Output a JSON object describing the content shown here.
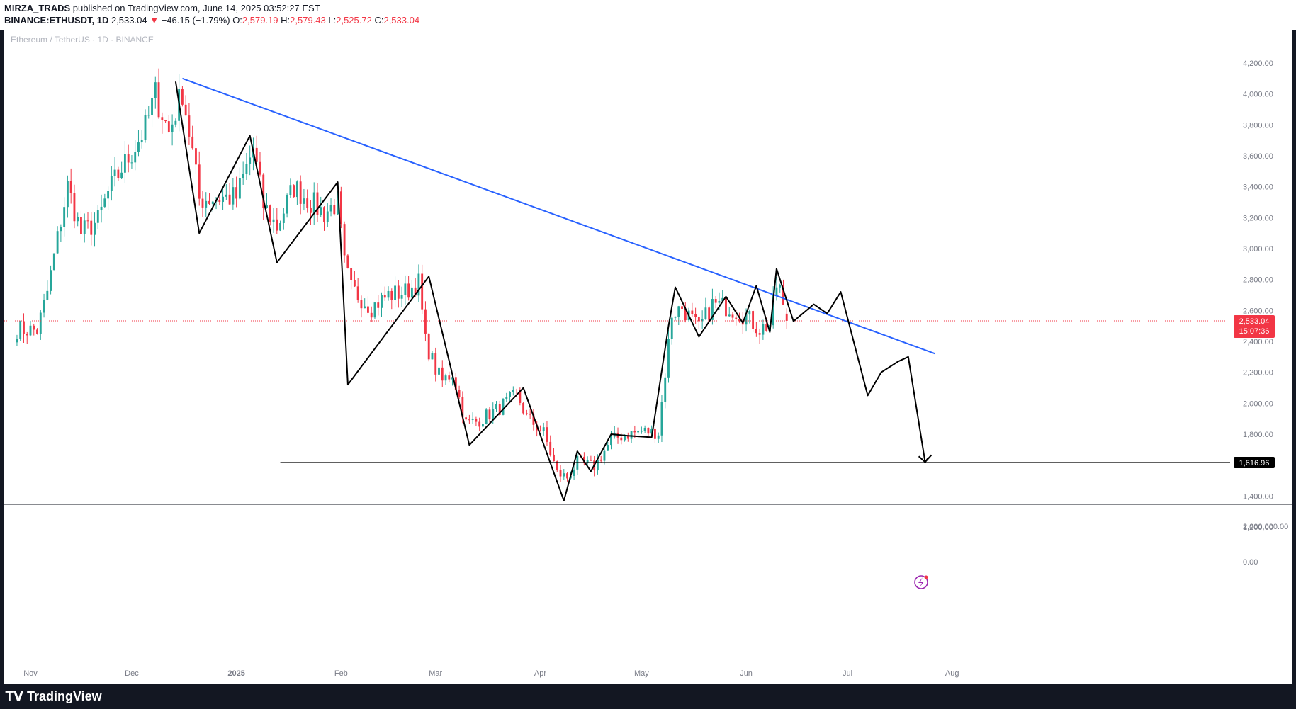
{
  "header": {
    "author": "MIRZA_TRADS",
    "published": "published on TradingView.com, June 14, 2025 03:52:27 EST",
    "symbol": "BINANCE:ETHUSDT, 1D",
    "last": "2,533.04",
    "arrow": "▼",
    "change": "−46.15 (−1.79%)",
    "o_label": "O:",
    "o_value": "2,579.19",
    "h_label": "H:",
    "h_value": "2,579.43",
    "l_label": "L:",
    "l_value": "2,525.72",
    "c_label": "C:",
    "c_value": "2,533.04"
  },
  "chart_title": "Ethereum / TetherUS · 1D · BINANCE",
  "footer": {
    "brand": "TradingView",
    "brand_icon": "tradingview-logo-icon"
  },
  "colors": {
    "up": "#26a69a",
    "down": "#f23645",
    "trendline": "#2962ff",
    "path": "#000000",
    "price_line": "#f23645",
    "lightning": "#9c27b0"
  },
  "chart_data": {
    "type": "candlestick",
    "title": "Ethereum / TetherUS · 1D · BINANCE",
    "y_ticks": [
      "4,200.00",
      "4,000.00",
      "3,800.00",
      "3,600.00",
      "3,400.00",
      "3,200.00",
      "3,000.00",
      "2,800.00",
      "2,600.00",
      "2,400.00",
      "2,200.00",
      "2,000.00",
      "1,800.00",
      "1,400.00",
      "1,200.00"
    ],
    "y_tick_values": [
      4200,
      4000,
      3800,
      3600,
      3400,
      3200,
      3000,
      2800,
      2600,
      2400,
      2200,
      2000,
      1800,
      1400,
      1200
    ],
    "ylim": [
      1150,
      4250
    ],
    "volume_ticks": [
      "2,000,000.00",
      "0.00"
    ],
    "x_ticks": [
      "Nov",
      "Dec",
      "2025",
      "Feb",
      "Mar",
      "Apr",
      "May",
      "Jun",
      "Jul",
      "Aug"
    ],
    "x_tick_dates": [
      "2024-11-01",
      "2024-12-01",
      "2025-01-01",
      "2025-02-01",
      "2025-03-01",
      "2025-04-01",
      "2025-05-01",
      "2025-06-01",
      "2025-07-01",
      "2025-08-01"
    ],
    "current_price": {
      "value": 2533.04,
      "label": "2,533.04",
      "countdown": "15:07:36"
    },
    "support_level": {
      "value": 1616.96,
      "label": "1,616.96",
      "from_date": "2025-01-14"
    },
    "trendline": [
      {
        "date": "2024-12-16",
        "value": 4100
      },
      {
        "date": "2025-07-27",
        "value": 2320
      }
    ],
    "pattern_path": [
      {
        "date": "2024-12-14",
        "value": 4080
      },
      {
        "date": "2024-12-21",
        "value": 3100
      },
      {
        "date": "2025-01-05",
        "value": 3730
      },
      {
        "date": "2025-01-13",
        "value": 2910
      },
      {
        "date": "2025-01-31",
        "value": 3430
      },
      {
        "date": "2025-02-03",
        "value": 2120
      },
      {
        "date": "2025-02-27",
        "value": 2820
      },
      {
        "date": "2025-03-11",
        "value": 1730
      },
      {
        "date": "2025-03-27",
        "value": 2100
      },
      {
        "date": "2025-04-08",
        "value": 1370
      },
      {
        "date": "2025-04-12",
        "value": 1690
      },
      {
        "date": "2025-04-16",
        "value": 1560
      },
      {
        "date": "2025-04-22",
        "value": 1800
      },
      {
        "date": "2025-04-27",
        "value": 1790
      },
      {
        "date": "2025-05-04",
        "value": 1780
      },
      {
        "date": "2025-05-09",
        "value": 2500
      },
      {
        "date": "2025-05-11",
        "value": 2750
      },
      {
        "date": "2025-05-18",
        "value": 2430
      },
      {
        "date": "2025-05-26",
        "value": 2690
      },
      {
        "date": "2025-05-31",
        "value": 2520
      },
      {
        "date": "2025-06-04",
        "value": 2760
      },
      {
        "date": "2025-06-08",
        "value": 2460
      },
      {
        "date": "2025-06-10",
        "value": 2870
      },
      {
        "date": "2025-06-15",
        "value": 2530
      },
      {
        "date": "2025-06-21",
        "value": 2640
      },
      {
        "date": "2025-06-25",
        "value": 2580
      },
      {
        "date": "2025-06-29",
        "value": 2720
      },
      {
        "date": "2025-07-07",
        "value": 2050
      },
      {
        "date": "2025-07-11",
        "value": 2200
      },
      {
        "date": "2025-07-16",
        "value": 2270
      },
      {
        "date": "2025-07-19",
        "value": 2300
      },
      {
        "date": "2025-07-24",
        "value": 1620
      },
      {
        "date": "2025-07-25",
        "value": 1650
      }
    ],
    "anchors": [
      {
        "date": "2024-10-28",
        "value": 2480
      },
      {
        "date": "2024-11-03",
        "value": 2470
      },
      {
        "date": "2024-11-06",
        "value": 2720
      },
      {
        "date": "2024-11-10",
        "value": 3180
      },
      {
        "date": "2024-11-12",
        "value": 3400
      },
      {
        "date": "2024-11-16",
        "value": 3100
      },
      {
        "date": "2024-11-21",
        "value": 3180
      },
      {
        "date": "2024-11-24",
        "value": 3360
      },
      {
        "date": "2024-11-28",
        "value": 3520
      },
      {
        "date": "2024-12-01",
        "value": 3620
      },
      {
        "date": "2024-12-05",
        "value": 3780
      },
      {
        "date": "2024-12-08",
        "value": 4000
      },
      {
        "date": "2024-12-12",
        "value": 3750
      },
      {
        "date": "2024-12-16",
        "value": 4020
      },
      {
        "date": "2024-12-19",
        "value": 3620
      },
      {
        "date": "2024-12-21",
        "value": 3320
      },
      {
        "date": "2024-12-27",
        "value": 3330
      },
      {
        "date": "2025-01-01",
        "value": 3330
      },
      {
        "date": "2025-01-06",
        "value": 3650
      },
      {
        "date": "2025-01-09",
        "value": 3280
      },
      {
        "date": "2025-01-13",
        "value": 3140
      },
      {
        "date": "2025-01-18",
        "value": 3400
      },
      {
        "date": "2025-01-23",
        "value": 3300
      },
      {
        "date": "2025-01-27",
        "value": 3230
      },
      {
        "date": "2025-01-31",
        "value": 3300
      },
      {
        "date": "2025-02-02",
        "value": 2900
      },
      {
        "date": "2025-02-04",
        "value": 2740
      },
      {
        "date": "2025-02-10",
        "value": 2620
      },
      {
        "date": "2025-02-15",
        "value": 2700
      },
      {
        "date": "2025-02-20",
        "value": 2720
      },
      {
        "date": "2025-02-24",
        "value": 2780
      },
      {
        "date": "2025-02-26",
        "value": 2400
      },
      {
        "date": "2025-03-01",
        "value": 2220
      },
      {
        "date": "2025-03-03",
        "value": 2140
      },
      {
        "date": "2025-03-06",
        "value": 2200
      },
      {
        "date": "2025-03-10",
        "value": 1870
      },
      {
        "date": "2025-03-13",
        "value": 1880
      },
      {
        "date": "2025-03-20",
        "value": 1970
      },
      {
        "date": "2025-03-25",
        "value": 2060
      },
      {
        "date": "2025-03-28",
        "value": 1910
      },
      {
        "date": "2025-04-02",
        "value": 1810
      },
      {
        "date": "2025-04-06",
        "value": 1550
      },
      {
        "date": "2025-04-09",
        "value": 1520
      },
      {
        "date": "2025-04-12",
        "value": 1620
      },
      {
        "date": "2025-04-17",
        "value": 1590
      },
      {
        "date": "2025-04-22",
        "value": 1760
      },
      {
        "date": "2025-04-25",
        "value": 1790
      },
      {
        "date": "2025-05-01",
        "value": 1820
      },
      {
        "date": "2025-05-06",
        "value": 1810
      },
      {
        "date": "2025-05-08",
        "value": 2200
      },
      {
        "date": "2025-05-10",
        "value": 2580
      },
      {
        "date": "2025-05-13",
        "value": 2620
      },
      {
        "date": "2025-05-18",
        "value": 2480
      },
      {
        "date": "2025-05-22",
        "value": 2640
      },
      {
        "date": "2025-05-27",
        "value": 2620
      },
      {
        "date": "2025-06-01",
        "value": 2560
      },
      {
        "date": "2025-06-05",
        "value": 2480
      },
      {
        "date": "2025-06-08",
        "value": 2510
      },
      {
        "date": "2025-06-10",
        "value": 2760
      },
      {
        "date": "2025-06-11",
        "value": 2740
      },
      {
        "date": "2025-06-12",
        "value": 2600
      },
      {
        "date": "2025-06-13",
        "value": 2533
      }
    ]
  }
}
